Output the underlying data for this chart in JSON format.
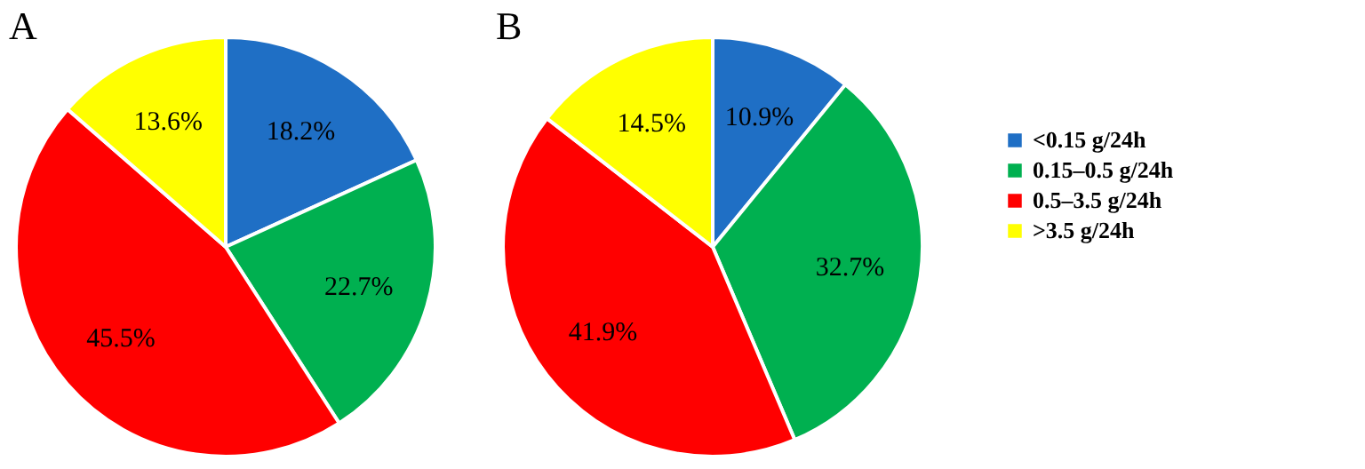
{
  "chart_data": [
    {
      "type": "pie",
      "title": "A",
      "categories": [
        null,
        null,
        null,
        null
      ],
      "values": [
        18.2,
        22.7,
        45.5,
        13.6
      ],
      "colors": [
        "#1f6fc5",
        "#00b050",
        "#ff0000",
        "#ffff00"
      ],
      "value_labels": [
        "18.2%",
        "22.7%",
        "45.5%",
        "13.6%"
      ],
      "legend": false
    },
    {
      "type": "pie",
      "title": "B",
      "categories": [
        "<0.15 g/24h",
        "0.15–0.5 g/24h",
        "0.5–3.5 g/24h",
        ">3.5 g/24h"
      ],
      "values": [
        10.9,
        32.7,
        41.9,
        14.5
      ],
      "colors": [
        "#1f6fc5",
        "#00b050",
        "#ff0000",
        "#ffff00"
      ],
      "value_labels": [
        "10.9%",
        "32.7%",
        "41.9%",
        "14.5%"
      ],
      "legend": "right"
    }
  ]
}
